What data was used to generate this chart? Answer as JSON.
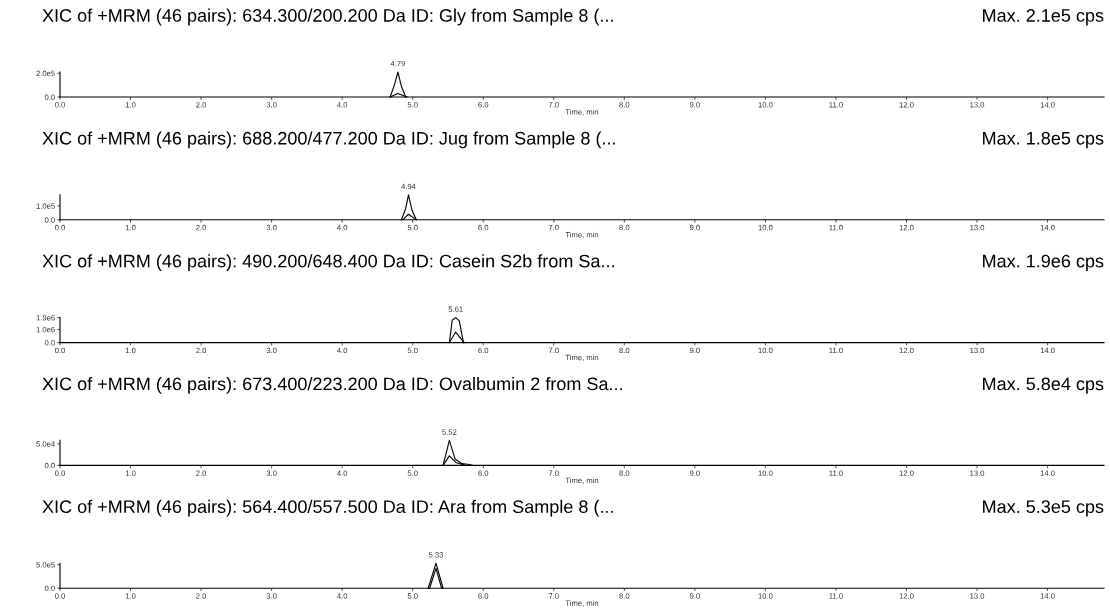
{
  "chart_data": [
    {
      "type": "line",
      "title": "XIC of +MRM (46 pairs): 634.300/200.200 Da ID: Gly from Sample 8 (...",
      "subtitle": "Max. 2.1e5 cps",
      "xlabel": "Time, min",
      "xlim": [
        0,
        14.8
      ],
      "xticks": [
        {
          "value": 0,
          "label": "0.0"
        },
        {
          "value": 1,
          "label": "1.0"
        },
        {
          "value": 2,
          "label": "2.0"
        },
        {
          "value": 3,
          "label": "3.0"
        },
        {
          "value": 4,
          "label": "4.0"
        },
        {
          "value": 5,
          "label": "5.0"
        },
        {
          "value": 6,
          "label": "6.0"
        },
        {
          "value": 7,
          "label": "7.0"
        },
        {
          "value": 8,
          "label": "8.0"
        },
        {
          "value": 9,
          "label": "9.0"
        },
        {
          "value": 10,
          "label": "10.0"
        },
        {
          "value": 11,
          "label": "11.0"
        },
        {
          "value": 12,
          "label": "12.0"
        },
        {
          "value": 13,
          "label": "13.0"
        },
        {
          "value": 14,
          "label": "14.0"
        }
      ],
      "ylim": [
        0,
        210000
      ],
      "yticks": [
        {
          "value": 0,
          "label": "0.0"
        },
        {
          "value": 200000,
          "label": "2.0e5"
        }
      ],
      "annotations": [
        {
          "text": "4.79",
          "x": 4.79,
          "y": 210000
        }
      ],
      "series": [
        {
          "color": "#000000",
          "x": [
            4.68,
            4.74,
            4.79,
            4.84,
            4.9
          ],
          "values": [
            0,
            100000,
            210000,
            90000,
            0
          ]
        },
        {
          "color": "#000000",
          "x": [
            4.68,
            4.79,
            4.92
          ],
          "values": [
            0,
            30000,
            0
          ]
        }
      ]
    },
    {
      "type": "line",
      "title": "XIC of +MRM (46 pairs): 688.200/477.200 Da ID: Jug from Sample 8 (...",
      "subtitle": "Max. 1.8e5 cps",
      "xlabel": "Time, min",
      "xlim": [
        0,
        14.8
      ],
      "xticks": [
        {
          "value": 0,
          "label": "0.0"
        },
        {
          "value": 1,
          "label": "1.0"
        },
        {
          "value": 2,
          "label": "2.0"
        },
        {
          "value": 3,
          "label": "3.0"
        },
        {
          "value": 4,
          "label": "4.0"
        },
        {
          "value": 5,
          "label": "5.0"
        },
        {
          "value": 6,
          "label": "6.0"
        },
        {
          "value": 7,
          "label": "7.0"
        },
        {
          "value": 8,
          "label": "8.0"
        },
        {
          "value": 9,
          "label": "9.0"
        },
        {
          "value": 10,
          "label": "10.0"
        },
        {
          "value": 11,
          "label": "11.0"
        },
        {
          "value": 12,
          "label": "12.0"
        },
        {
          "value": 13,
          "label": "13.0"
        },
        {
          "value": 14,
          "label": "14.0"
        }
      ],
      "ylim": [
        0,
        180000
      ],
      "yticks": [
        {
          "value": 0,
          "label": "0.0"
        },
        {
          "value": 100000,
          "label": "1.0e5"
        }
      ],
      "annotations": [
        {
          "text": "4.94",
          "x": 4.94,
          "y": 180000
        }
      ],
      "series": [
        {
          "color": "#000000",
          "x": [
            4.84,
            4.9,
            4.94,
            4.99,
            5.05
          ],
          "values": [
            0,
            80000,
            180000,
            70000,
            0
          ]
        },
        {
          "color": "#000000",
          "x": [
            4.86,
            4.94,
            5.05
          ],
          "values": [
            0,
            40000,
            0
          ]
        }
      ]
    },
    {
      "type": "line",
      "title": "XIC of +MRM (46 pairs): 490.200/648.400 Da ID: Casein S2b from Sa...",
      "subtitle": "Max. 1.9e6 cps",
      "xlabel": "Time, min",
      "xlim": [
        0,
        14.8
      ],
      "xticks": [
        {
          "value": 0,
          "label": "0.0"
        },
        {
          "value": 1,
          "label": "1.0"
        },
        {
          "value": 2,
          "label": "2.0"
        },
        {
          "value": 3,
          "label": "3.0"
        },
        {
          "value": 4,
          "label": "4.0"
        },
        {
          "value": 5,
          "label": "5.0"
        },
        {
          "value": 6,
          "label": "6.0"
        },
        {
          "value": 7,
          "label": "7.0"
        },
        {
          "value": 8,
          "label": "8.0"
        },
        {
          "value": 9,
          "label": "9.0"
        },
        {
          "value": 10,
          "label": "10.0"
        },
        {
          "value": 11,
          "label": "11.0"
        },
        {
          "value": 12,
          "label": "12.0"
        },
        {
          "value": 13,
          "label": "13.0"
        },
        {
          "value": 14,
          "label": "14.0"
        }
      ],
      "ylim": [
        0,
        1900000
      ],
      "yticks": [
        {
          "value": 0,
          "label": "0.0"
        },
        {
          "value": 1000000,
          "label": "1.0e6"
        },
        {
          "value": 1900000,
          "label": "1.9e6"
        }
      ],
      "annotations": [
        {
          "text": "5.61",
          "x": 5.61,
          "y": 1900000
        }
      ],
      "series": [
        {
          "color": "#000000",
          "x": [
            5.52,
            5.56,
            5.61,
            5.66,
            5.72
          ],
          "values": [
            0,
            1700000,
            1900000,
            1650000,
            0
          ]
        },
        {
          "color": "#000000",
          "x": [
            5.52,
            5.61,
            5.73
          ],
          "values": [
            0,
            800000,
            0
          ]
        }
      ]
    },
    {
      "type": "line",
      "title": "XIC of +MRM (46 pairs): 673.400/223.200 Da ID: Ovalbumin 2 from Sa...",
      "subtitle": "Max. 5.8e4 cps",
      "xlabel": "Time, min",
      "xlim": [
        0,
        14.8
      ],
      "xticks": [
        {
          "value": 0,
          "label": "0.0"
        },
        {
          "value": 1,
          "label": "1.0"
        },
        {
          "value": 2,
          "label": "2.0"
        },
        {
          "value": 3,
          "label": "3.0"
        },
        {
          "value": 4,
          "label": "4.0"
        },
        {
          "value": 5,
          "label": "5.0"
        },
        {
          "value": 6,
          "label": "6.0"
        },
        {
          "value": 7,
          "label": "7.0"
        },
        {
          "value": 8,
          "label": "8.0"
        },
        {
          "value": 9,
          "label": "9.0"
        },
        {
          "value": 10,
          "label": "10.0"
        },
        {
          "value": 11,
          "label": "11.0"
        },
        {
          "value": 12,
          "label": "12.0"
        },
        {
          "value": 13,
          "label": "13.0"
        },
        {
          "value": 14,
          "label": "14.0"
        }
      ],
      "ylim": [
        0,
        58000
      ],
      "yticks": [
        {
          "value": 0,
          "label": "0.0"
        },
        {
          "value": 50000,
          "label": "5.0e4"
        }
      ],
      "annotations": [
        {
          "text": "5.52",
          "x": 5.52,
          "y": 58000
        }
      ],
      "series": [
        {
          "color": "#000000",
          "x": [
            5.43,
            5.52,
            5.6,
            5.7,
            5.8,
            5.85
          ],
          "values": [
            0,
            58000,
            15000,
            4000,
            2000,
            0
          ]
        },
        {
          "color": "#000000",
          "x": [
            5.43,
            5.52,
            5.62,
            5.75
          ],
          "values": [
            0,
            22000,
            6000,
            0
          ]
        }
      ]
    },
    {
      "type": "line",
      "title": "XIC of +MRM (46 pairs): 564.400/557.500 Da ID: Ara from Sample 8 (...",
      "subtitle": "Max. 5.3e5 cps",
      "xlabel": "Time, min",
      "xlim": [
        0,
        14.8
      ],
      "xticks": [
        {
          "value": 0,
          "label": "0.0"
        },
        {
          "value": 1,
          "label": "1.0"
        },
        {
          "value": 2,
          "label": "2.0"
        },
        {
          "value": 3,
          "label": "3.0"
        },
        {
          "value": 4,
          "label": "4.0"
        },
        {
          "value": 5,
          "label": "5.0"
        },
        {
          "value": 6,
          "label": "6.0"
        },
        {
          "value": 7,
          "label": "7.0"
        },
        {
          "value": 8,
          "label": "8.0"
        },
        {
          "value": 9,
          "label": "9.0"
        },
        {
          "value": 10,
          "label": "10.0"
        },
        {
          "value": 11,
          "label": "11.0"
        },
        {
          "value": 12,
          "label": "12.0"
        },
        {
          "value": 13,
          "label": "13.0"
        },
        {
          "value": 14,
          "label": "14.0"
        }
      ],
      "ylim": [
        0,
        530000
      ],
      "yticks": [
        {
          "value": 0,
          "label": "0.0"
        },
        {
          "value": 500000,
          "label": "5.0e5"
        }
      ],
      "annotations": [
        {
          "text": "5.33",
          "x": 5.33,
          "y": 530000
        }
      ],
      "series": [
        {
          "color": "#000000",
          "x": [
            5.22,
            5.33,
            5.43
          ],
          "values": [
            0,
            530000,
            0
          ]
        },
        {
          "color": "#000000",
          "x": [
            5.24,
            5.33,
            5.41
          ],
          "values": [
            0,
            420000,
            0
          ]
        }
      ]
    }
  ]
}
